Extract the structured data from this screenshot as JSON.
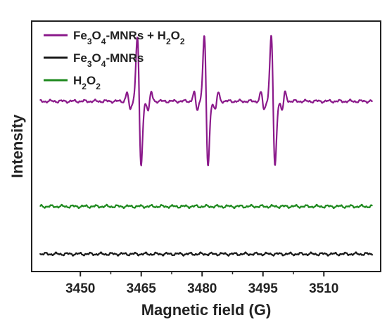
{
  "chart_data": {
    "type": "line",
    "xlabel": "Magnetic field (G)",
    "ylabel": "Intensity",
    "xlim": [
      3438,
      3524
    ],
    "ylim": [
      0,
      100
    ],
    "x_ticks": [
      3450,
      3465,
      3480,
      3495,
      3510
    ],
    "y_ticks_shown": false,
    "grid": false,
    "legend_position": "top-left",
    "series": [
      {
        "name": "Fe3O4-MNRs + H2O2",
        "legend_parts": [
          [
            "Fe",
            ""
          ],
          [
            "3",
            "sub"
          ],
          [
            "O",
            ""
          ],
          [
            "4",
            "sub"
          ],
          [
            "-MNRs + H",
            ""
          ],
          [
            "2",
            "sub"
          ],
          [
            "O",
            ""
          ],
          [
            "2",
            "sub"
          ]
        ],
        "color": "#8b1a8b",
        "baseline": 68,
        "dmpo_oh_quartet": {
          "centers": [
            3464.5,
            3481.0,
            3497.5
          ],
          "peak_amplitude": 26,
          "side_amplitude": 3.5
        }
      },
      {
        "name": "Fe3O4-MNRs",
        "legend_parts": [
          [
            "Fe",
            ""
          ],
          [
            "3",
            "sub"
          ],
          [
            "O",
            ""
          ],
          [
            "4",
            "sub"
          ],
          [
            "-MNRs",
            ""
          ]
        ],
        "color": "#1a1a1a",
        "baseline": 7
      },
      {
        "name": "H2O2",
        "legend_parts": [
          [
            "H",
            ""
          ],
          [
            "2",
            "sub"
          ],
          [
            "O",
            ""
          ],
          [
            "2",
            "sub"
          ]
        ],
        "color": "#1f8a1f",
        "baseline": 26
      }
    ]
  }
}
